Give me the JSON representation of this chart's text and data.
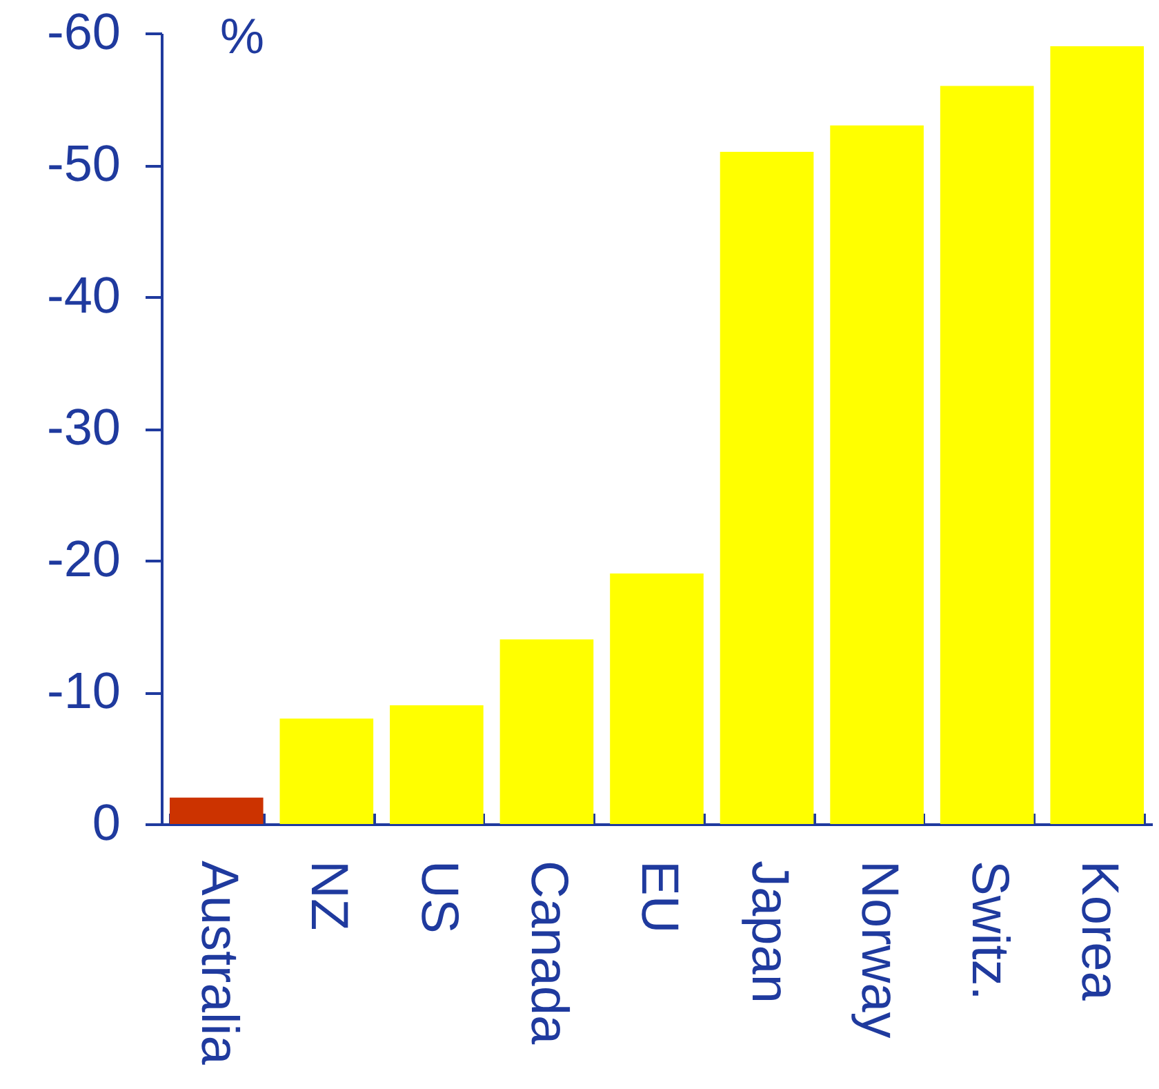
{
  "chart_data": {
    "type": "bar",
    "ylabel": "%",
    "categories": [
      "Australia",
      "NZ",
      "US",
      "Canada",
      "EU",
      "Japan",
      "Norway",
      "Switz.",
      "Korea"
    ],
    "values": [
      -2,
      -8,
      -9,
      -14,
      -19,
      -51,
      -53,
      -56,
      -59
    ],
    "colors": [
      "#cc3300",
      "#ffff00",
      "#ffff00",
      "#ffff00",
      "#ffff00",
      "#ffff00",
      "#ffff00",
      "#ffff00",
      "#ffff00"
    ],
    "ylim": [
      0,
      -60
    ],
    "yticks": [
      0,
      -10,
      -20,
      -30,
      -40,
      -50,
      -60
    ]
  }
}
